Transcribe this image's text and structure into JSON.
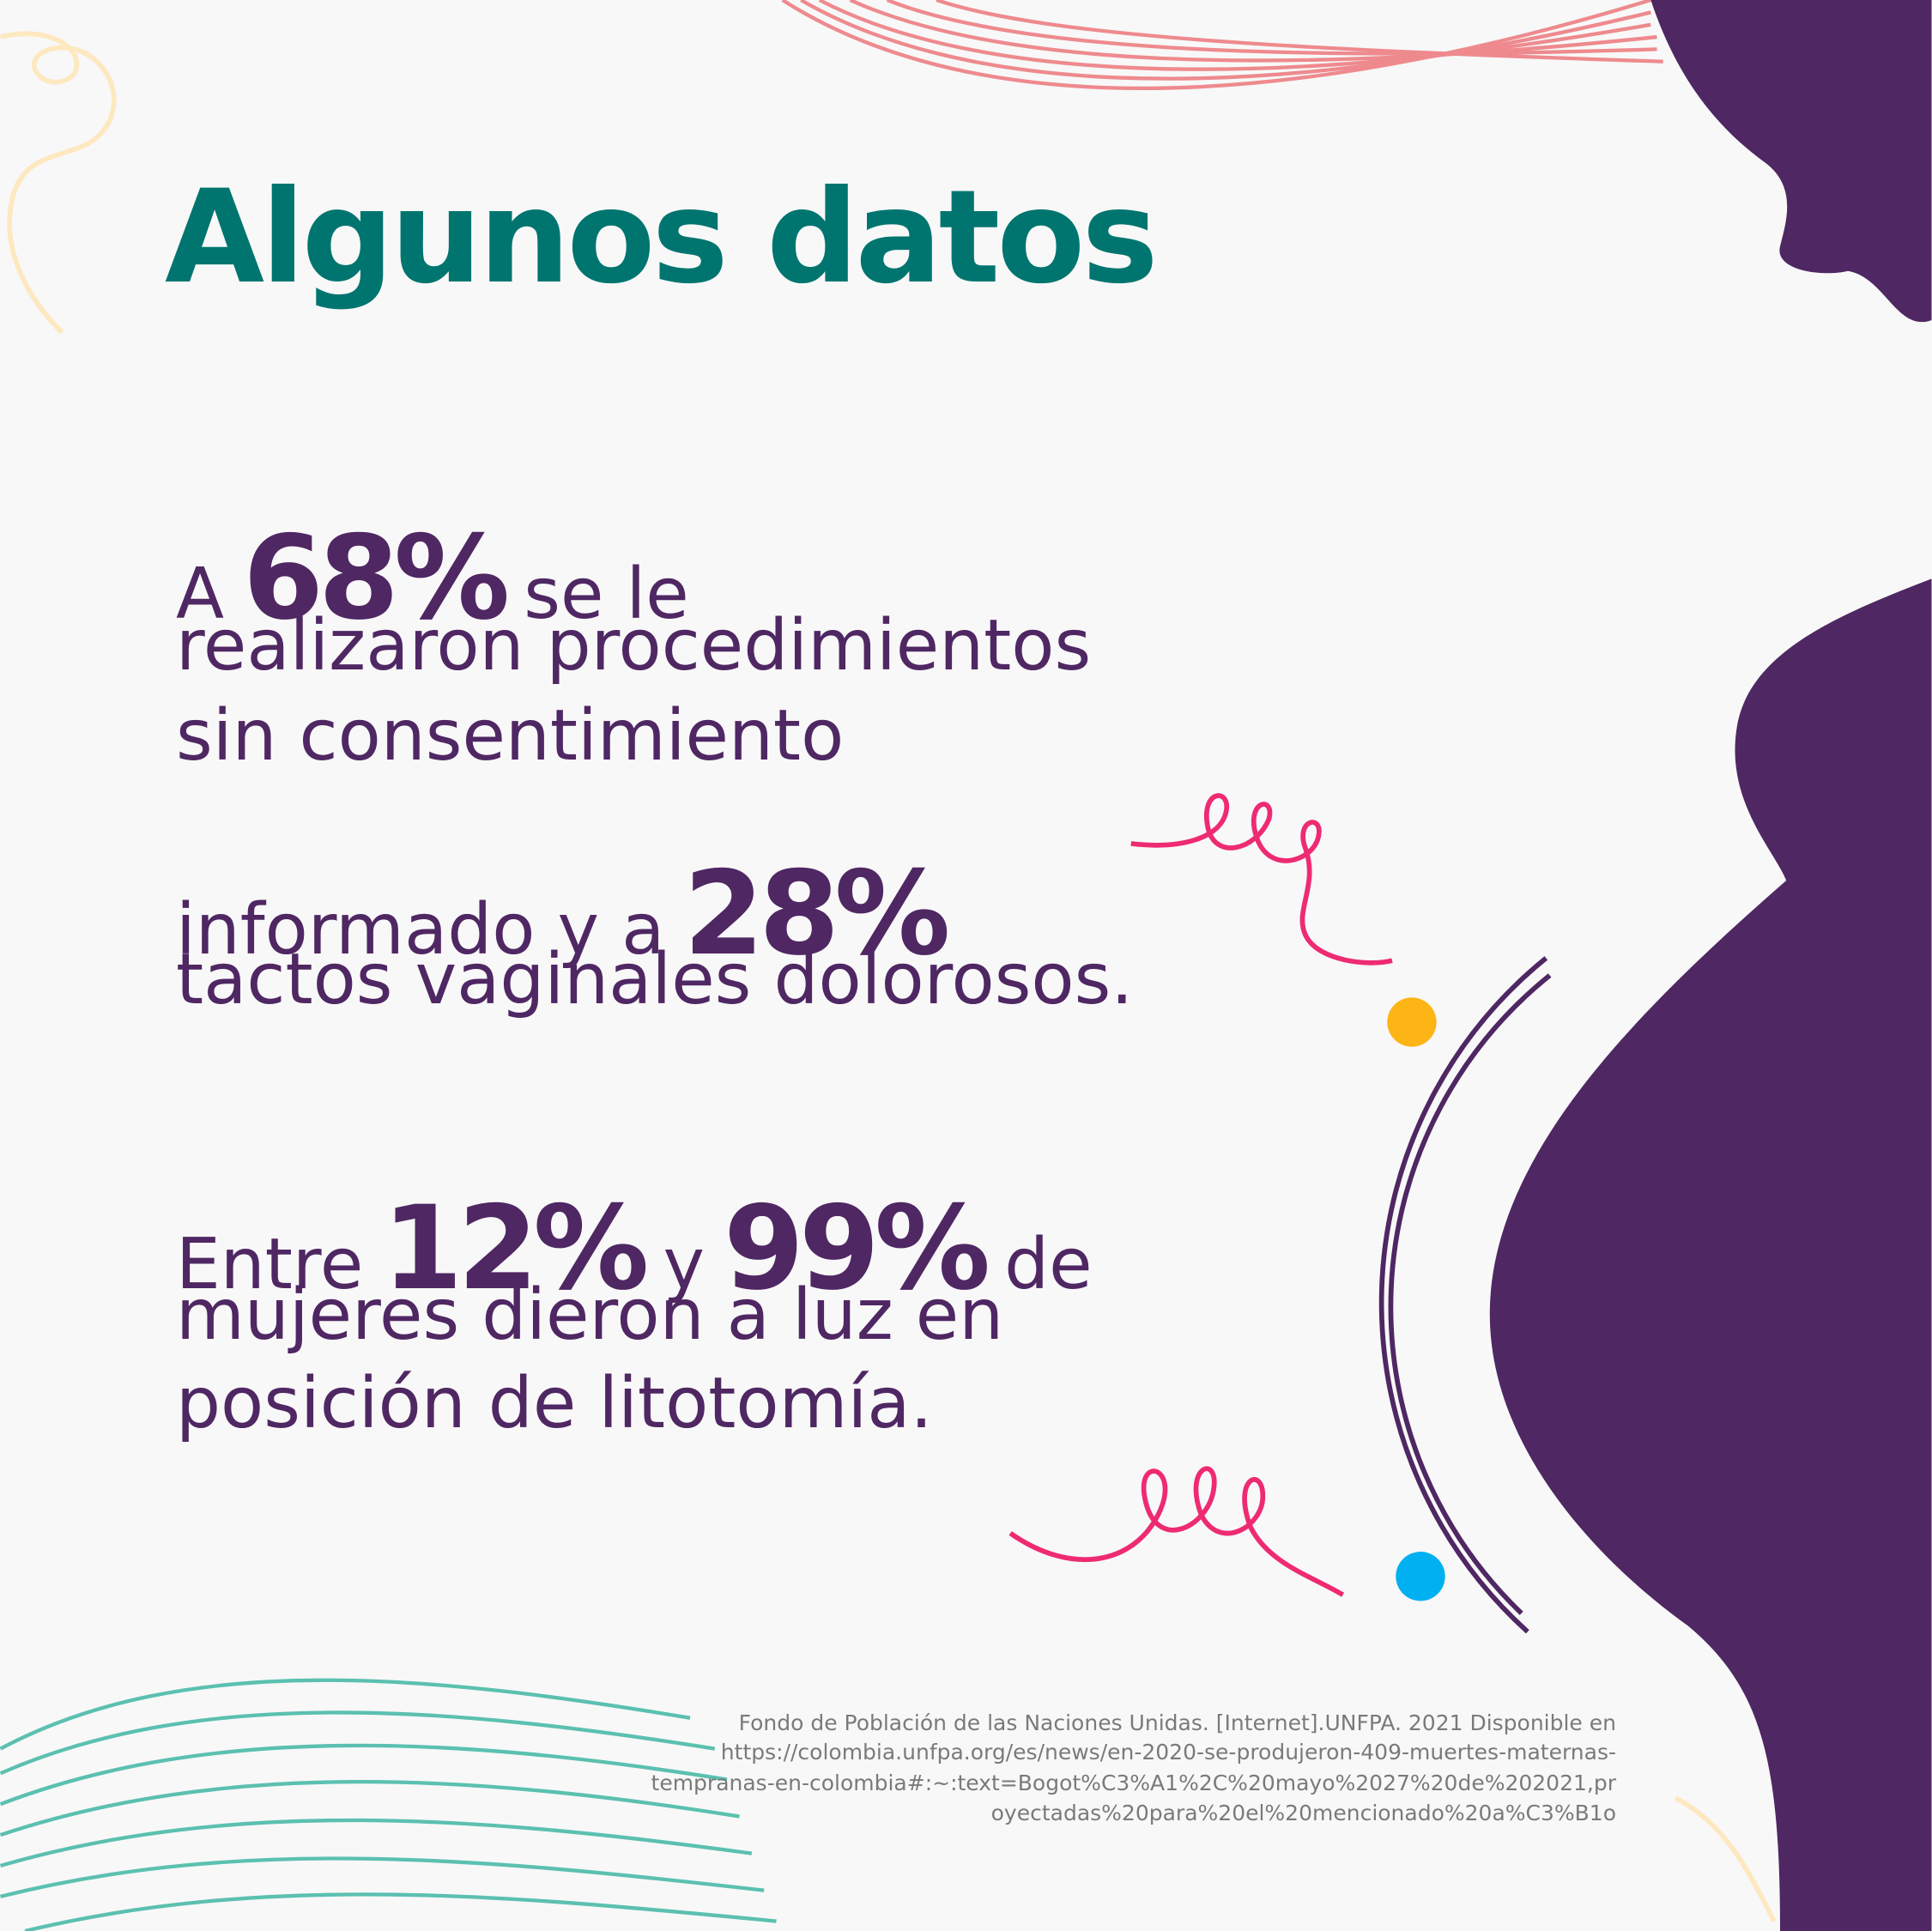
{
  "title": "Algunos datos",
  "facts": [
    {
      "lines": [
        [
          {
            "text": "A",
            "emphasis": false
          },
          {
            "text": "68%",
            "emphasis": true
          },
          {
            "text": "se le",
            "emphasis": false
          }
        ],
        [
          {
            "text": "realizaron procedimientos",
            "emphasis": false
          }
        ],
        [
          {
            "text": "sin consentimiento",
            "emphasis": false
          }
        ],
        [
          {
            "text": "informado y a",
            "emphasis": false
          },
          {
            "text": "28%",
            "emphasis": true
          }
        ],
        [
          {
            "text": "tactos vaginales dolorosos.",
            "emphasis": false
          }
        ]
      ]
    },
    {
      "lines": [
        [
          {
            "text": "Entre",
            "emphasis": false
          },
          {
            "text": "12%",
            "emphasis": true
          },
          {
            "text": "y",
            "emphasis": false
          },
          {
            "text": "99%",
            "emphasis": true
          },
          {
            "text": "de",
            "emphasis": false
          }
        ],
        [
          {
            "text": "mujeres dieron a luz en",
            "emphasis": false
          }
        ],
        [
          {
            "text": "posición de litotomía.",
            "emphasis": false
          }
        ]
      ]
    }
  ],
  "citation": [
    "Fondo de Población de las Naciones Unidas. [Internet].UNFPA. 2021 Disponible en",
    "https://colombia.unfpa.org/es/news/en-2020-se-produjeron-409-muertes-maternas-",
    "tempranas-en-colombia#:~:text=Bogot%C3%A1%2C%20mayo%2027%20de%202021,pr",
    "oyectadas%20para%20el%20mencionado%20a%C3%B1o"
  ]
}
